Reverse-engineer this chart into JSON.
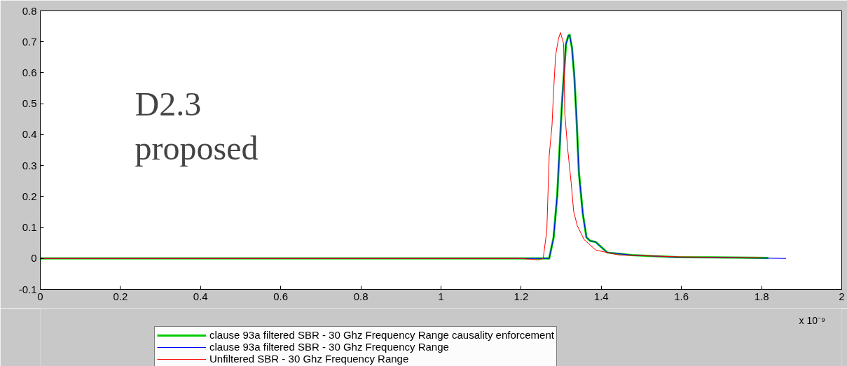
{
  "chart_data": {
    "type": "line",
    "xlim": [
      0,
      2
    ],
    "ylim": [
      -0.1,
      0.8
    ],
    "xticks": [
      0,
      0.2,
      0.4,
      0.6,
      0.8,
      1,
      1.2,
      1.4,
      1.6,
      1.8,
      2
    ],
    "yticks": [
      -0.1,
      0,
      0.1,
      0.2,
      0.3,
      0.4,
      0.5,
      0.6,
      0.7,
      0.8
    ],
    "grid": false,
    "legend": "bottom",
    "annotations": [
      "D2.3\nproposed",
      "x 10⁻⁹"
    ],
    "series": [
      {
        "name": "clause 93a filtered SBR - 30 Ghz Frequency Range causality enforcement",
        "color": "#00cc00",
        "x": [
          0,
          1.2,
          1.27,
          1.281,
          1.29,
          1.296,
          1.302,
          1.308,
          1.312,
          1.318,
          1.321,
          1.327,
          1.333,
          1.339,
          1.344,
          1.354,
          1.363,
          1.372,
          1.386,
          1.415,
          1.474,
          1.59,
          1.817
        ],
        "values": [
          0,
          0,
          0,
          0.068,
          0.204,
          0.355,
          0.505,
          0.618,
          0.694,
          0.72,
          0.722,
          0.679,
          0.581,
          0.43,
          0.279,
          0.143,
          0.068,
          0.057,
          0.053,
          0.019,
          0.011,
          0.004,
          0.002
        ]
      },
      {
        "name": "clause 93a filtered SBR - 30 Ghz Frequency Range",
        "color": "#0000ff",
        "x": [
          0,
          1.2,
          1.27,
          1.281,
          1.29,
          1.296,
          1.302,
          1.308,
          1.312,
          1.318,
          1.321,
          1.327,
          1.333,
          1.339,
          1.344,
          1.354,
          1.363,
          1.372,
          1.386,
          1.415,
          1.474,
          1.59,
          1.861
        ],
        "values": [
          0,
          0,
          0,
          0.068,
          0.204,
          0.355,
          0.505,
          0.618,
          0.694,
          0.72,
          0.722,
          0.679,
          0.581,
          0.43,
          0.279,
          0.143,
          0.068,
          0.057,
          0.053,
          0.019,
          0.011,
          0.004,
          0.0
        ]
      },
      {
        "name": "Unfiltered SBR - 30 Ghz Frequency Range",
        "color": "#ff0000",
        "x": [
          0,
          1.2,
          1.243,
          1.255,
          1.264,
          1.27,
          1.277,
          1.281,
          1.286,
          1.293,
          1.298,
          1.306,
          1.309,
          1.316,
          1.325,
          1.331,
          1.34,
          1.357,
          1.386,
          1.444,
          1.6,
          1.8
        ],
        "values": [
          0,
          0,
          -0.005,
          0.0,
          0.09,
          0.333,
          0.43,
          0.543,
          0.656,
          0.709,
          0.73,
          0.694,
          0.468,
          0.355,
          0.242,
          0.152,
          0.106,
          0.061,
          0.027,
          0.011,
          0.005,
          0.002
        ]
      }
    ]
  }
}
